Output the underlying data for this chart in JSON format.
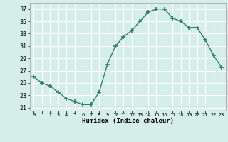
{
  "x": [
    0,
    1,
    2,
    3,
    4,
    5,
    6,
    7,
    8,
    9,
    10,
    11,
    12,
    13,
    14,
    15,
    16,
    17,
    18,
    19,
    20,
    21,
    22,
    23
  ],
  "y": [
    26.0,
    25.0,
    24.5,
    23.5,
    22.5,
    22.0,
    21.5,
    21.5,
    23.5,
    28.0,
    31.0,
    32.5,
    33.5,
    35.0,
    36.5,
    37.0,
    37.0,
    35.5,
    35.0,
    34.0,
    34.0,
    32.0,
    29.5,
    27.5
  ],
  "xlim": [
    -0.5,
    23.5
  ],
  "ylim": [
    20.5,
    38
  ],
  "yticks": [
    21,
    23,
    25,
    27,
    29,
    31,
    33,
    35,
    37
  ],
  "xtick_labels": [
    "0",
    "1",
    "2",
    "3",
    "4",
    "5",
    "6",
    "7",
    "8",
    "9",
    "10",
    "11",
    "12",
    "13",
    "14",
    "15",
    "16",
    "17",
    "18",
    "19",
    "20",
    "21",
    "22",
    "23"
  ],
  "xlabel": "Humidex (Indice chaleur)",
  "line_color": "#2d7d6e",
  "marker_color": "#2d7d6e",
  "bg_color": "#d6eeea",
  "grid_color": "#ffffff",
  "spine_color": "#aaaaaa"
}
